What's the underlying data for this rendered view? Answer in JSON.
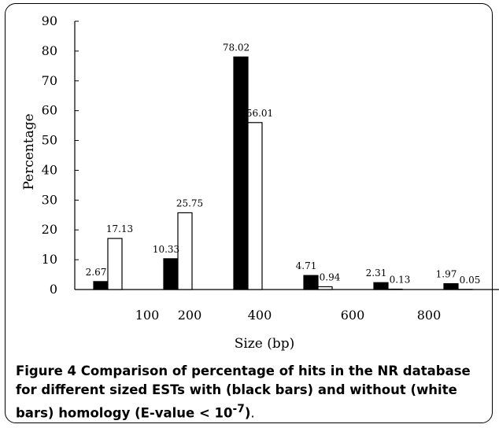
{
  "chart_data": {
    "type": "bar",
    "categories": [
      "100",
      "200",
      "400",
      "600",
      "800",
      ""
    ],
    "xlabel": "Size (bp)",
    "ylabel": "Percentage",
    "ylim": [
      0,
      90
    ],
    "yticks": [
      "0",
      "10",
      "20",
      "30",
      "40",
      "50",
      "60",
      "70",
      "80",
      "90"
    ],
    "xtick_labels": [
      "100",
      "200",
      "400",
      "600",
      "800"
    ],
    "grid": false,
    "legend": "none",
    "series": [
      {
        "color": "#000000",
        "values": [
          2.67,
          10.33,
          78.02,
          4.71,
          2.31,
          1.97
        ],
        "labels": [
          "2.67",
          "10.33",
          "78.02",
          "4.71",
          "2.31",
          "1.97"
        ]
      },
      {
        "color": "#ffffff",
        "values": [
          17.13,
          25.75,
          56.01,
          0.94,
          0.13,
          0.05
        ],
        "labels": [
          "17.13",
          "25.75",
          "56.01",
          "0.94",
          "0.13",
          "0.05"
        ]
      }
    ]
  },
  "caption": {
    "label": "Figure 4",
    "text_bold": " Comparison of percentage of hits in the NR database for different sized ESTs with (black bars) and without (white bars) homology (E-value < 10",
    "sup": "-7",
    "text_end": ")",
    "period": "."
  }
}
